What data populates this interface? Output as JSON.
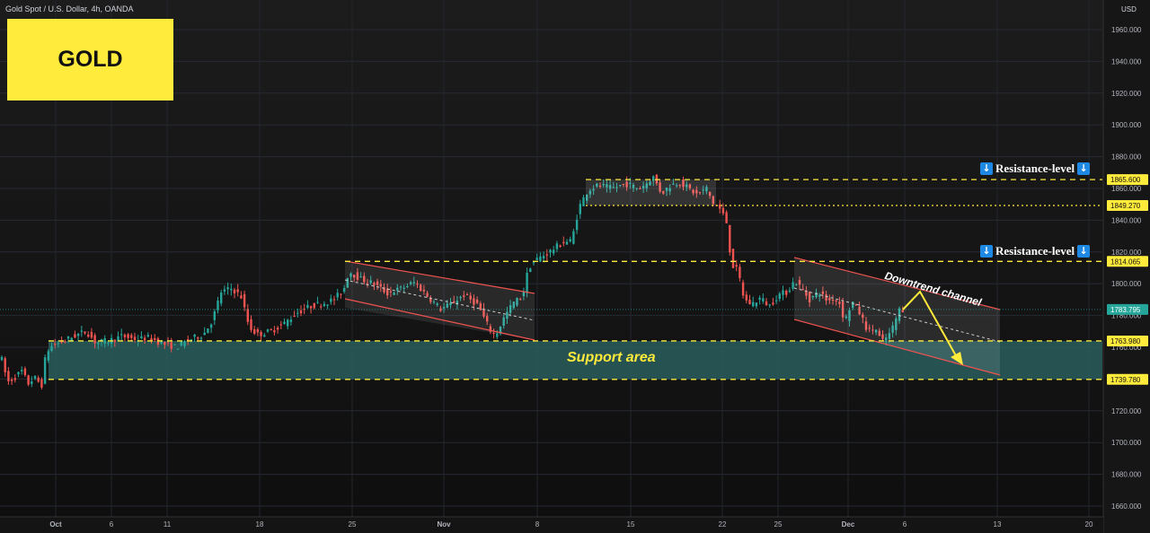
{
  "header": {
    "symbol_title": "Gold Spot / U.S. Dollar, 4h, OANDA",
    "badge": "GOLD",
    "currency": "USD"
  },
  "annotations": {
    "resistance_label": "Resistance-level",
    "support_label": "Support area",
    "channel_label": "Downtrend channel",
    "arrow_glyph": "↓"
  },
  "colors": {
    "bull": "#26a69a",
    "bear": "#ef5350",
    "level_line": "#ffeb3b",
    "support_fill": "#2a5e5e",
    "price_tag_yellow": "#ffeb3b",
    "price_tag_current": "#26a69a",
    "arrow": "#ffeb3b",
    "badge": "#ffeb3b",
    "icon_blue": "#1e88e5"
  },
  "chart_data": {
    "type": "candlestick",
    "title": "Gold Spot / U.S. Dollar, 4h, OANDA",
    "ylabel": "USD",
    "ylim": [
      1655,
      1970
    ],
    "y_ticks": [
      1960,
      1940,
      1920,
      1900,
      1880,
      1860,
      1840,
      1820,
      1800,
      1780,
      1760,
      1740,
      1720,
      1700,
      1680,
      1660
    ],
    "y_tick_labels": [
      "1960.000",
      "1940.000",
      "1920.000",
      "1900.000",
      "1880.000",
      "1860.000",
      "1840.000",
      "1820.000",
      "1800.000",
      "1780.000",
      "1760.000",
      "1740.000",
      "1720.000",
      "1700.000",
      "1680.000",
      "1660.000"
    ],
    "x_labels": [
      "Oct",
      "6",
      "11",
      "18",
      "25",
      "Nov",
      "8",
      "15",
      "22",
      "25",
      "Dec",
      "6",
      "13",
      "20"
    ],
    "price_tags": [
      {
        "value": 1865.6,
        "label": "1865.600",
        "kind": "level"
      },
      {
        "value": 1849.27,
        "label": "1849.270",
        "kind": "level"
      },
      {
        "value": 1814.065,
        "label": "1814.065",
        "kind": "level"
      },
      {
        "value": 1783.795,
        "label": "1783.795",
        "kind": "current"
      },
      {
        "value": 1763.98,
        "label": "1763.980",
        "kind": "level"
      },
      {
        "value": 1739.78,
        "label": "1739.780",
        "kind": "level"
      }
    ],
    "levels": [
      {
        "value": 1865.6,
        "style": "dashed"
      },
      {
        "value": 1849.27,
        "style": "dotted"
      },
      {
        "value": 1814.065,
        "style": "dashed"
      },
      {
        "value": 1763.98,
        "style": "dashed"
      },
      {
        "value": 1739.78,
        "style": "dashed"
      }
    ],
    "support_area": [
      1739.78,
      1763.98
    ],
    "current_price": 1783.795,
    "path_closes": [
      {
        "x": "Sep 29",
        "close": 1752
      },
      {
        "x": "Sep 30",
        "close": 1735
      },
      {
        "x": "Oct 1",
        "close": 1760
      },
      {
        "x": "Oct 4",
        "close": 1766
      },
      {
        "x": "Oct 6",
        "close": 1762
      },
      {
        "x": "Oct 8",
        "close": 1758
      },
      {
        "x": "Oct 11",
        "close": 1756
      },
      {
        "x": "Oct 12",
        "close": 1762
      },
      {
        "x": "Oct 14",
        "close": 1795
      },
      {
        "x": "Oct 15",
        "close": 1798
      },
      {
        "x": "Oct 18",
        "close": 1766
      },
      {
        "x": "Oct 19",
        "close": 1770
      },
      {
        "x": "Oct 20",
        "close": 1783
      },
      {
        "x": "Oct 21",
        "close": 1786
      },
      {
        "x": "Oct 22",
        "close": 1793
      },
      {
        "x": "Oct 25",
        "close": 1805
      },
      {
        "x": "Oct 27",
        "close": 1800
      },
      {
        "x": "Oct 29",
        "close": 1785
      },
      {
        "x": "Nov 1",
        "close": 1790
      },
      {
        "x": "Nov 3",
        "close": 1772
      },
      {
        "x": "Nov 4",
        "close": 1767
      },
      {
        "x": "Nov 5",
        "close": 1795
      },
      {
        "x": "Nov 6",
        "close": 1810
      },
      {
        "x": "Nov 8",
        "close": 1817
      },
      {
        "x": "Nov 9",
        "close": 1825
      },
      {
        "x": "Nov 10",
        "close": 1847
      },
      {
        "x": "Nov 11",
        "close": 1862
      },
      {
        "x": "Nov 12",
        "close": 1863
      },
      {
        "x": "Nov 15",
        "close": 1865
      },
      {
        "x": "Nov 16",
        "close": 1858
      },
      {
        "x": "Nov 17",
        "close": 1868
      },
      {
        "x": "Nov 18",
        "close": 1860
      },
      {
        "x": "Nov 19",
        "close": 1855
      },
      {
        "x": "Nov 22",
        "close": 1808
      },
      {
        "x": "Nov 23",
        "close": 1790
      },
      {
        "x": "Nov 24",
        "close": 1787
      },
      {
        "x": "Nov 25",
        "close": 1790
      },
      {
        "x": "Nov 26",
        "close": 1796
      },
      {
        "x": "Nov 29",
        "close": 1787
      },
      {
        "x": "Nov 30",
        "close": 1774
      },
      {
        "x": "Dec 1",
        "close": 1782
      },
      {
        "x": "Dec 2",
        "close": 1763
      },
      {
        "x": "Dec 3",
        "close": 1783
      },
      {
        "x": "Dec 6",
        "close": 1783.795
      }
    ]
  }
}
